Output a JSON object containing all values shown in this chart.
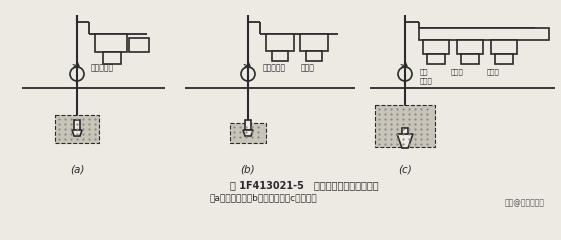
{
  "bg_color": "#ede9e3",
  "line_color": "#2a2a2a",
  "fig_title": "图 1F413021-5   高压喷射灌浆法施工方法",
  "fig_subtitle": "（a）单管法；（b）二管法；（c）三管法",
  "watermark": "头条@工程小达人",
  "label_a": "(a)",
  "label_b": "(b)",
  "label_c": "(c)",
  "text_a": "高压泥浆泵",
  "text_b1": "高压泥浆泵",
  "text_b2": "空压机",
  "text_c1": "高压",
  "text_c2": "空压机",
  "text_c3": "泥浆泵",
  "text_c4": "清水泵"
}
